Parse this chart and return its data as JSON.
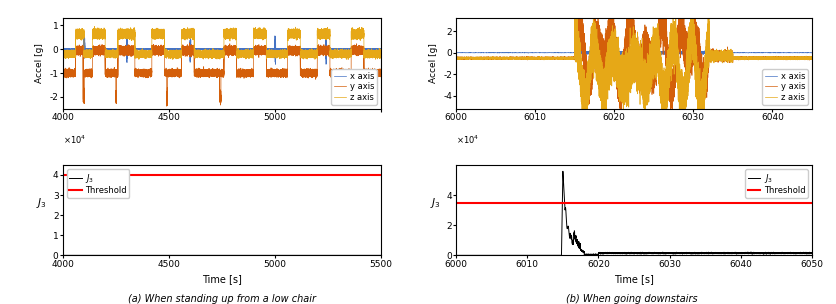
{
  "left_accel": {
    "xlim": [
      40000,
      55000
    ],
    "ylim": [
      -2.5,
      1.3
    ],
    "yticks": [
      -2,
      -1,
      0,
      1
    ],
    "xticks": [
      40000,
      45000,
      50000,
      55000
    ],
    "xticklabels": [
      "4000",
      "4500",
      "5000",
      ""
    ],
    "ylabel": "Accel [g]",
    "x_color": "#4472c4",
    "y_color": "#d45f0a",
    "z_color": "#e6a817",
    "legend_labels": [
      "x axis",
      "y axis",
      "z axis"
    ]
  },
  "left_j3": {
    "xlim": [
      40000,
      55000
    ],
    "ylim": [
      0,
      4.5
    ],
    "yticks": [
      0,
      1,
      2,
      3,
      4
    ],
    "xticks": [
      40000,
      45000,
      50000,
      55000
    ],
    "xticklabels": [
      "4000",
      "4500",
      "5000",
      "5500"
    ],
    "xlabel": "Time [s]",
    "ylabel": "J₃",
    "threshold": 4.0,
    "threshold_color": "#ff0000",
    "j3_color": "#000000",
    "caption": "(a) When standing up from a low chair"
  },
  "right_accel": {
    "xlim": [
      60000,
      60450
    ],
    "ylim": [
      -5.2,
      3.2
    ],
    "yticks": [
      -4,
      -2,
      0,
      2
    ],
    "xticks": [
      60000,
      60100,
      60200,
      60300,
      60400
    ],
    "xticklabels": [
      "6000",
      "6010",
      "6020",
      "6030",
      "6040"
    ],
    "ylabel": "Accel [g]",
    "x_color": "#4472c4",
    "y_color": "#d45f0a",
    "z_color": "#e6a817",
    "legend_labels": [
      "x axis",
      "y axis",
      "z axis"
    ]
  },
  "right_j3": {
    "xlim": [
      60000,
      60500
    ],
    "ylim": [
      0,
      6.0
    ],
    "yticks": [
      0,
      2,
      4
    ],
    "xticks": [
      60000,
      60100,
      60200,
      60300,
      60400,
      60500
    ],
    "xticklabels": [
      "6000",
      "6010",
      "6020",
      "6030",
      "6040",
      "6050"
    ],
    "xlabel": "Time [s]",
    "ylabel": "J₃",
    "threshold": 3.5,
    "threshold_color": "#ff0000",
    "j3_color": "#000000",
    "caption": "(b) When going downstairs"
  }
}
